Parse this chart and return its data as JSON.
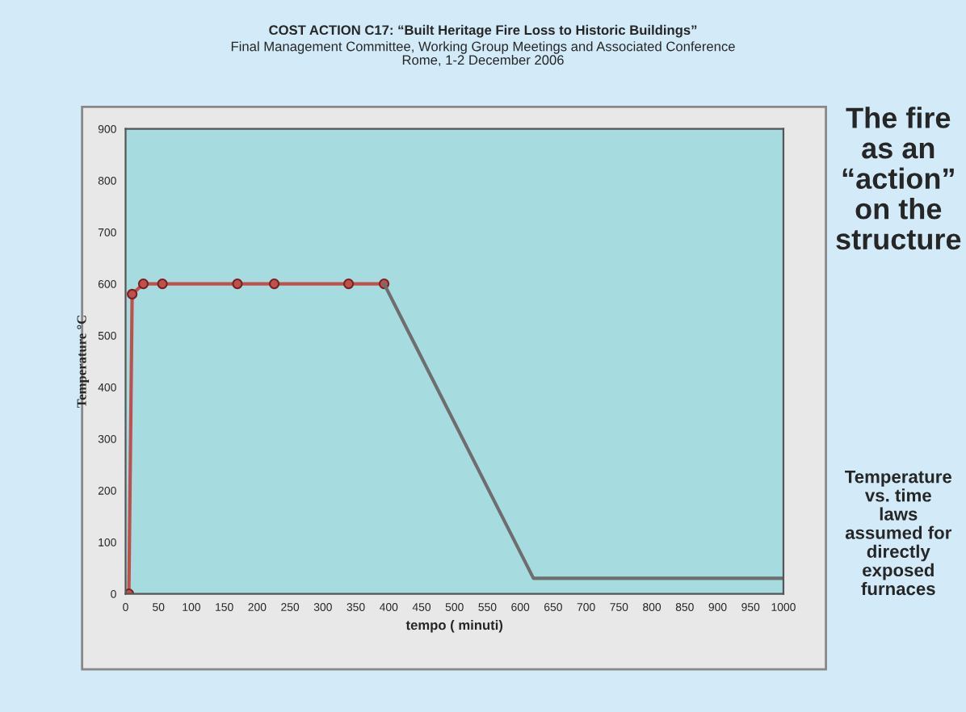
{
  "chart_data": {
    "type": "line",
    "title": "COST ACTION C17: “Built Heritage Fire Loss to Historic Buildings”",
    "subtitle": "Final Management Committee, Working Group Meetings and Associated Conference\nRome, 1-2 December 2006",
    "xlabel": "tempo ( minuti)",
    "ylabel": "Temperature °C",
    "series": [
      {
        "color": "#c0504d",
        "marker": "circle",
        "x": [
          5,
          10,
          27,
          56,
          170,
          226,
          339,
          393
        ],
        "values": [
          0,
          580,
          600,
          600,
          600,
          600,
          600,
          600
        ]
      },
      {
        "color": "#6e6e6e",
        "marker": "none",
        "x": [
          393,
          620,
          1000
        ],
        "values": [
          600,
          30,
          30
        ]
      }
    ],
    "xlim": [
      0,
      1000
    ],
    "xticks": [
      0,
      50,
      100,
      150,
      200,
      250,
      300,
      350,
      400,
      450,
      500,
      550,
      600,
      650,
      700,
      750,
      800,
      850,
      900,
      950,
      1000
    ],
    "ylim": [
      0,
      900
    ],
    "yticks": [
      0,
      100,
      200,
      300,
      400,
      500,
      600,
      700,
      800,
      900
    ],
    "grid": false,
    "legend": false,
    "line_style": "solid",
    "annotations": [
      "The fire\nas an\n“action”\non the\nstructure",
      "Temperature\nvs. time\nlaws\nassumed for\ndirectly\nexposed\nfurnaces"
    ]
  }
}
